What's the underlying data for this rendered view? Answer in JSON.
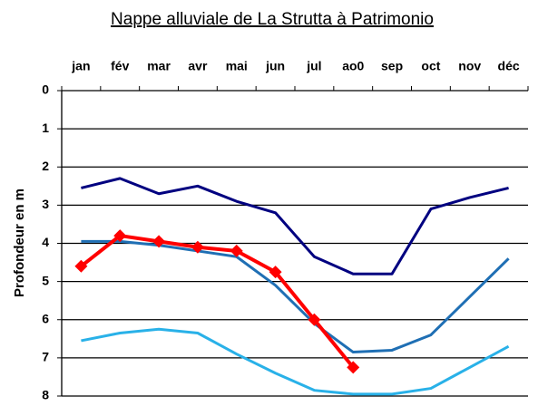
{
  "chart_data": {
    "type": "line",
    "title": "Nappe alluviale de La Strutta à Patrimonio",
    "y_label": "Profondeur en m",
    "categories": [
      "jan",
      "fév",
      "mar",
      "avr",
      "mai",
      "jun",
      "jul",
      "ao0",
      "sep",
      "oct",
      "nov",
      "déc"
    ],
    "series": [
      {
        "color": "#000080",
        "values": [
          2.55,
          2.3,
          2.7,
          2.5,
          2.9,
          3.2,
          4.35,
          4.8,
          4.8,
          3.1,
          2.8,
          2.55
        ]
      },
      {
        "color": "#1f6fb4",
        "values": [
          3.95,
          3.95,
          4.05,
          4.2,
          4.35,
          5.1,
          6.1,
          6.85,
          6.8,
          6.4,
          5.4,
          4.4
        ]
      },
      {
        "color": "#29b1e8",
        "values": [
          6.55,
          6.35,
          6.25,
          6.35,
          6.9,
          7.4,
          7.85,
          7.95,
          7.95,
          7.8,
          7.25,
          6.7
        ]
      },
      {
        "color": "#ff0000",
        "marker": "diamond",
        "values": [
          4.6,
          3.8,
          3.95,
          4.1,
          4.2,
          4.75,
          6.0,
          7.25,
          null,
          null,
          null,
          null
        ]
      }
    ],
    "ylim": [
      0,
      8
    ],
    "y_inverted": true,
    "yticks": [
      0,
      1,
      2,
      3,
      4,
      5,
      6,
      7,
      8
    ],
    "grid": true,
    "x_axis_position": "top"
  }
}
